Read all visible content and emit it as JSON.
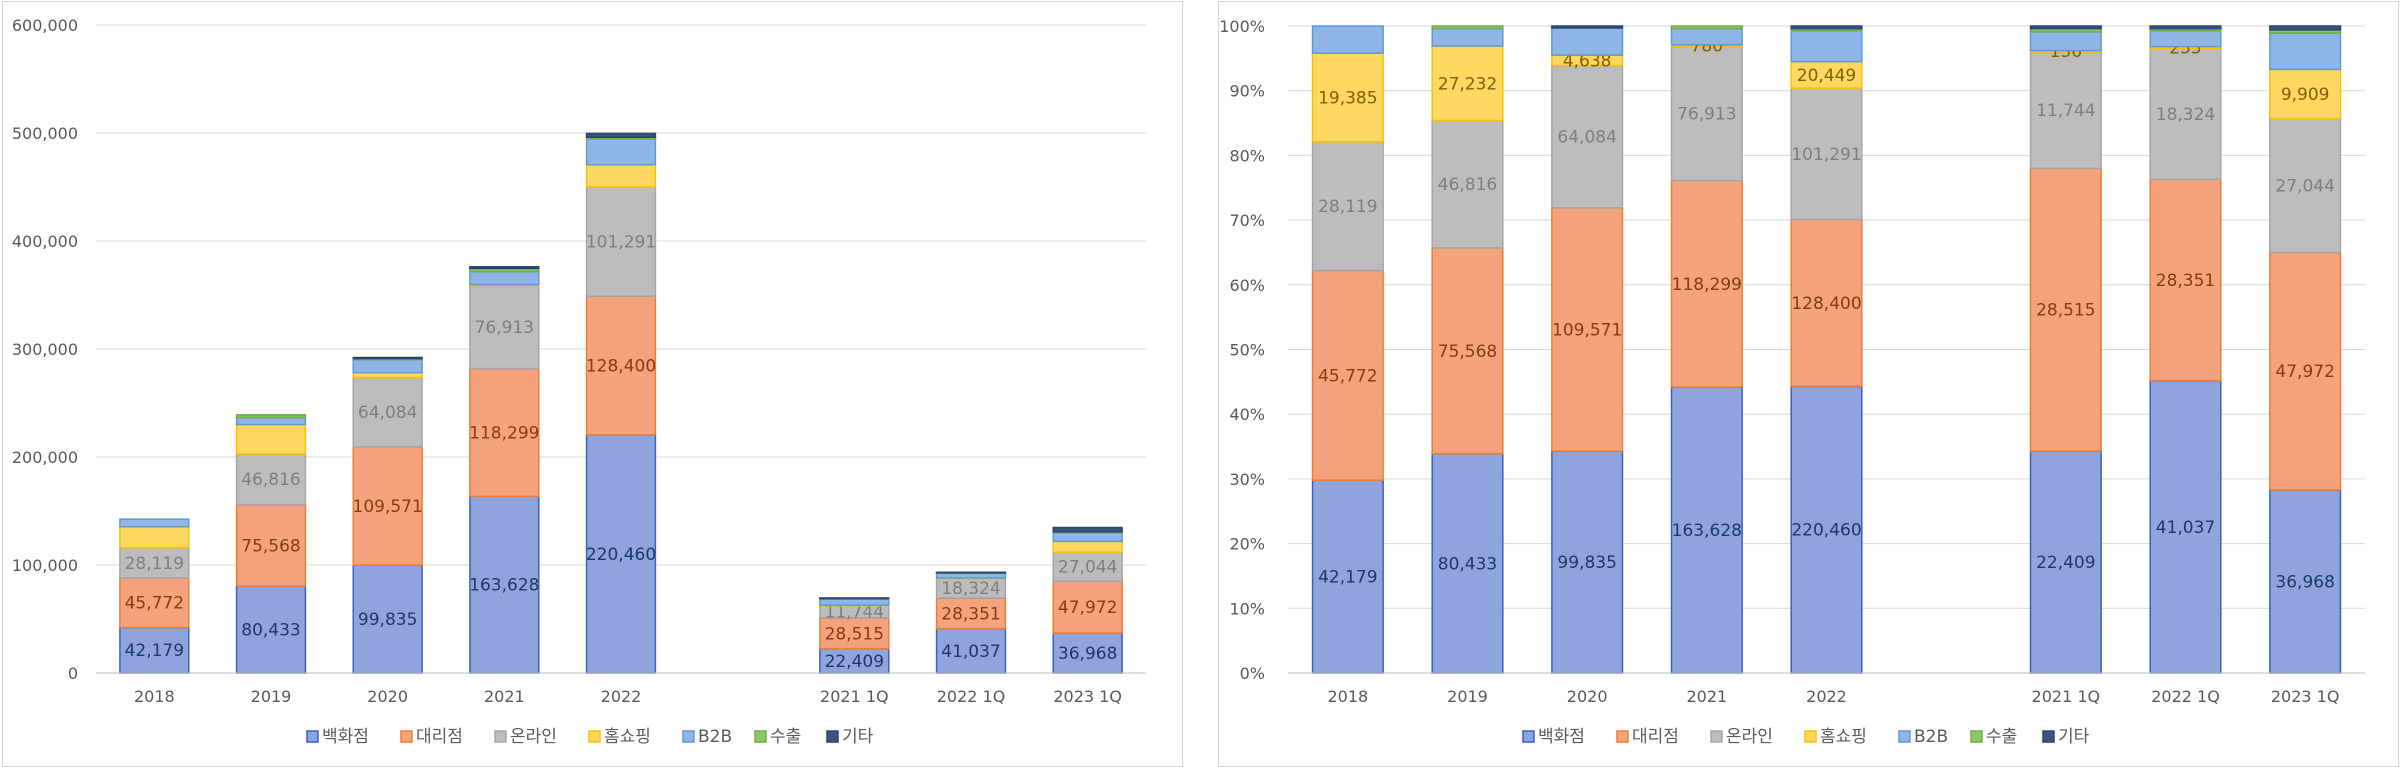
{
  "chart_data": [
    {
      "type": "bar",
      "stacked": true,
      "categories": [
        "2018",
        "2019",
        "2020",
        "2021",
        "2022",
        "",
        "2021 1Q",
        "2022 1Q",
        "2023 1Q"
      ],
      "ylim": [
        0,
        600000
      ],
      "yticks": [
        "0",
        "100,000",
        "200,000",
        "300,000",
        "400,000",
        "500,000",
        "600,000"
      ],
      "grid": true,
      "legend": "bottom",
      "series": [
        {
          "name": "백화점",
          "values": [
            42179,
            80433,
            99835,
            163628,
            220460,
            null,
            22409,
            41037,
            36968
          ],
          "labels": [
            "42,179",
            "80,433",
            "99,835",
            "163,628",
            "220,460",
            "",
            "22,409",
            "41,037",
            "36,968"
          ]
        },
        {
          "name": "대리점",
          "values": [
            45772,
            75568,
            109571,
            118299,
            128400,
            null,
            28515,
            28351,
            47972
          ],
          "labels": [
            "45,772",
            "75,568",
            "109,571",
            "118,299",
            "128,400",
            "",
            "28,515",
            "28,351",
            "47,972"
          ]
        },
        {
          "name": "온라인",
          "values": [
            28119,
            46816,
            64084,
            76913,
            101291,
            null,
            11744,
            18324,
            27044
          ],
          "labels": [
            "28,119",
            "46,816",
            "64,084",
            "76,913",
            "101,291",
            "",
            "11,744",
            "18,324",
            "27,044"
          ]
        },
        {
          "name": "홈쇼핑",
          "values": [
            19385,
            27232,
            4638,
            780,
            20449,
            null,
            136,
            255,
            9909
          ],
          "labels": [
            "",
            "",
            "",
            "",
            "",
            "",
            "",
            "",
            ""
          ]
        },
        {
          "name": "B2B",
          "values": [
            7000,
            6500,
            12000,
            12000,
            24000,
            null,
            5500,
            4500,
            8000
          ],
          "labels": [
            "",
            "",
            "",
            "",
            "",
            "",
            "",
            "",
            ""
          ]
        },
        {
          "name": "수출",
          "values": [
            0,
            2500,
            1000,
            3000,
            1500,
            null,
            600,
            300,
            800
          ],
          "labels": [
            "",
            "",
            "",
            "",
            "",
            "",
            "",
            "",
            ""
          ]
        },
        {
          "name": "기타",
          "values": [
            0,
            0,
            1000,
            1500,
            3500,
            null,
            600,
            500,
            4000
          ],
          "labels": [
            "",
            "",
            "",
            "",
            "",
            "",
            "",
            "",
            ""
          ]
        }
      ]
    },
    {
      "type": "bar",
      "stacked": true,
      "percent": true,
      "categories": [
        "2018",
        "2019",
        "2020",
        "2021",
        "2022",
        "",
        "2021 1Q",
        "2022 1Q",
        "2023 1Q"
      ],
      "ylim": [
        0,
        100
      ],
      "yticks": [
        "0%",
        "10%",
        "20%",
        "30%",
        "40%",
        "50%",
        "60%",
        "70%",
        "80%",
        "90%",
        "100%"
      ],
      "grid": true,
      "legend": "bottom",
      "series": [
        {
          "name": "백화점",
          "values": [
            29.8,
            33.9,
            34.3,
            44.2,
            44.3,
            null,
            34.3,
            45.2,
            28.3
          ],
          "labels": [
            "42,179",
            "80,433",
            "99,835",
            "163,628",
            "220,460",
            "",
            "22,409",
            "41,037",
            "36,968"
          ]
        },
        {
          "name": "대리점",
          "values": [
            32.4,
            31.8,
            37.6,
            31.9,
            25.8,
            null,
            43.7,
            31.1,
            36.7
          ],
          "labels": [
            "45,772",
            "75,568",
            "109,571",
            "118,299",
            "128,400",
            "",
            "28,515",
            "28,351",
            "47,972"
          ]
        },
        {
          "name": "온라인",
          "values": [
            19.9,
            19.7,
            22.0,
            20.8,
            20.3,
            null,
            18.0,
            20.2,
            20.7
          ],
          "labels": [
            "28,119",
            "46,816",
            "64,084",
            "76,913",
            "101,291",
            "",
            "11,744",
            "18,324",
            "27,044"
          ]
        },
        {
          "name": "홈쇼핑",
          "values": [
            13.7,
            11.5,
            1.6,
            0.2,
            4.1,
            null,
            0.2,
            0.3,
            7.6
          ],
          "labels": [
            "19,385",
            "27,232",
            "4,638",
            "780",
            "20,449",
            "",
            "136",
            "255",
            "9,909"
          ]
        },
        {
          "name": "B2B",
          "values": [
            4.2,
            2.7,
            4.2,
            2.5,
            4.8,
            null,
            2.9,
            2.5,
            5.6
          ],
          "labels": [
            "",
            "",
            "",
            "",
            "",
            "",
            "",
            "",
            ""
          ]
        },
        {
          "name": "수출",
          "values": [
            0.0,
            0.4,
            0.0,
            0.4,
            0.3,
            null,
            0.5,
            0.3,
            0.5
          ],
          "labels": [
            "",
            "",
            "",
            "",
            "",
            "",
            "",
            "",
            ""
          ]
        },
        {
          "name": "기타",
          "values": [
            0.0,
            0.0,
            0.3,
            0.0,
            0.4,
            null,
            0.4,
            0.4,
            0.6
          ],
          "labels": [
            "",
            "",
            "",
            "",
            "",
            "",
            "",
            "",
            ""
          ]
        }
      ]
    }
  ],
  "palette": {
    "fills": [
      "#8fa4dc",
      "#f5a37f",
      "#bdbdbd",
      "#ffd862",
      "#8fb6e6",
      "#8bc66a",
      "#3d5379"
    ],
    "strokes": [
      "#3a5fc8",
      "#ed7d31",
      "#a5a5a5",
      "#ffc000",
      "#5b9bd5",
      "#70ad47",
      "#264478"
    ],
    "labels": [
      "#1f3864",
      "#843c0c",
      "#7f7f7f",
      "#7f6000",
      "#1f3864",
      "#375623",
      "#1f3864"
    ],
    "grid": "#d9d9d9",
    "text": "#595959"
  }
}
